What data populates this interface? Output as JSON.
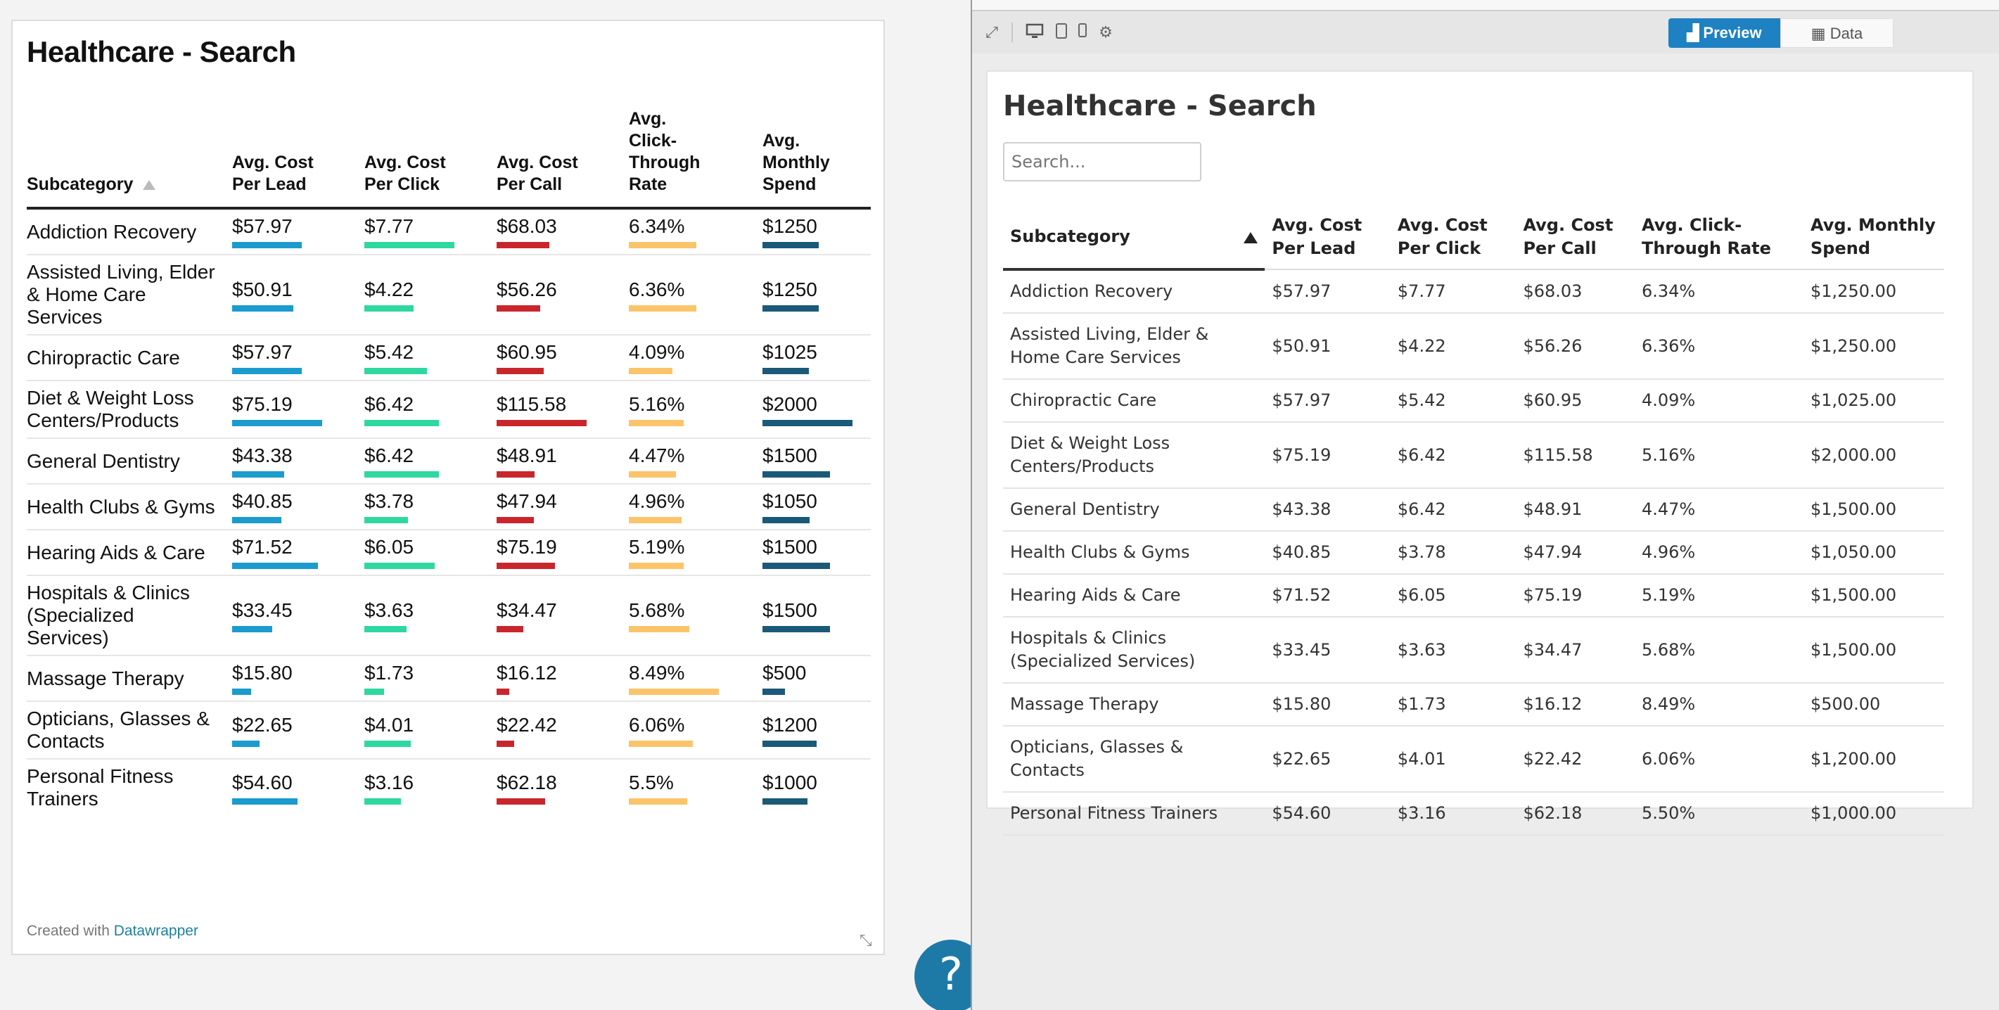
{
  "left": {
    "title": "Healthcare - Search",
    "headers": {
      "subcategory": "Subcategory",
      "cost_per_lead": "Avg. Cost Per Lead",
      "cost_per_click": "Avg. Cost Per Click",
      "cost_per_call": "Avg. Cost Per Call",
      "ctr": "Avg. Click-Through Rate",
      "monthly_spend": "Avg. Monthly Spend"
    },
    "bar_colors": [
      "#1b9bce",
      "#2ed8a0",
      "#c9262c",
      "#fcc46a",
      "#1b5978"
    ],
    "rows": [
      {
        "subcategory": "Addiction Recovery",
        "lead": "$57.97",
        "click": "$7.77",
        "call": "$68.03",
        "ctr": "6.34%",
        "spend": "$1250"
      },
      {
        "subcategory": "Assisted Living, Elder & Home Care Services",
        "lead": "$50.91",
        "click": "$4.22",
        "call": "$56.26",
        "ctr": "6.36%",
        "spend": "$1250"
      },
      {
        "subcategory": "Chiropractic Care",
        "lead": "$57.97",
        "click": "$5.42",
        "call": "$60.95",
        "ctr": "4.09%",
        "spend": "$1025"
      },
      {
        "subcategory": "Diet & Weight Loss Centers/Products",
        "lead": "$75.19",
        "click": "$6.42",
        "call": "$115.58",
        "ctr": "5.16%",
        "spend": "$2000"
      },
      {
        "subcategory": "General Dentistry",
        "lead": "$43.38",
        "click": "$6.42",
        "call": "$48.91",
        "ctr": "4.47%",
        "spend": "$1500"
      },
      {
        "subcategory": "Health Clubs & Gyms",
        "lead": "$40.85",
        "click": "$3.78",
        "call": "$47.94",
        "ctr": "4.96%",
        "spend": "$1050"
      },
      {
        "subcategory": "Hearing Aids & Care",
        "lead": "$71.52",
        "click": "$6.05",
        "call": "$75.19",
        "ctr": "5.19%",
        "spend": "$1500"
      },
      {
        "subcategory": "Hospitals & Clinics (Specialized Services)",
        "lead": "$33.45",
        "click": "$3.63",
        "call": "$34.47",
        "ctr": "5.68%",
        "spend": "$1500"
      },
      {
        "subcategory": "Massage Therapy",
        "lead": "$15.80",
        "click": "$1.73",
        "call": "$16.12",
        "ctr": "8.49%",
        "spend": "$500"
      },
      {
        "subcategory": "Opticians, Glasses & Contacts",
        "lead": "$22.65",
        "click": "$4.01",
        "call": "$22.42",
        "ctr": "6.06%",
        "spend": "$1200"
      },
      {
        "subcategory": "Personal Fitness Trainers",
        "lead": "$54.60",
        "click": "$3.16",
        "call": "$62.18",
        "ctr": "5.5%",
        "spend": "$1000"
      }
    ],
    "credit_prefix": "Created with",
    "credit_link": "Datawrapper"
  },
  "help_label": "?",
  "right": {
    "view_preview": "Preview",
    "view_data": "Data",
    "title": "Healthcare - Search",
    "search_placeholder": "Search...",
    "headers": {
      "subcategory": "Subcategory",
      "cost_per_lead": "Avg. Cost Per Lead",
      "cost_per_click": "Avg. Cost Per Click",
      "cost_per_call": "Avg. Cost Per Call",
      "ctr": "Avg. Click-Through Rate",
      "monthly_spend": "Avg. Monthly Spend"
    },
    "rows": [
      {
        "subcategory": "Addiction Recovery",
        "lead": "$57.97",
        "click": "$7.77",
        "call": "$68.03",
        "ctr": "6.34%",
        "spend": "$1,250.00"
      },
      {
        "subcategory": "Assisted Living, Elder & Home Care Services",
        "lead": "$50.91",
        "click": "$4.22",
        "call": "$56.26",
        "ctr": "6.36%",
        "spend": "$1,250.00"
      },
      {
        "subcategory": "Chiropractic Care",
        "lead": "$57.97",
        "click": "$5.42",
        "call": "$60.95",
        "ctr": "4.09%",
        "spend": "$1,025.00"
      },
      {
        "subcategory": "Diet & Weight Loss Centers/Products",
        "lead": "$75.19",
        "click": "$6.42",
        "call": "$115.58",
        "ctr": "5.16%",
        "spend": "$2,000.00"
      },
      {
        "subcategory": "General Dentistry",
        "lead": "$43.38",
        "click": "$6.42",
        "call": "$48.91",
        "ctr": "4.47%",
        "spend": "$1,500.00"
      },
      {
        "subcategory": "Health Clubs & Gyms",
        "lead": "$40.85",
        "click": "$3.78",
        "call": "$47.94",
        "ctr": "4.96%",
        "spend": "$1,050.00"
      },
      {
        "subcategory": "Hearing Aids & Care",
        "lead": "$71.52",
        "click": "$6.05",
        "call": "$75.19",
        "ctr": "5.19%",
        "spend": "$1,500.00"
      },
      {
        "subcategory": "Hospitals & Clinics (Specialized Services)",
        "lead": "$33.45",
        "click": "$3.63",
        "call": "$34.47",
        "ctr": "5.68%",
        "spend": "$1,500.00"
      },
      {
        "subcategory": "Massage Therapy",
        "lead": "$15.80",
        "click": "$1.73",
        "call": "$16.12",
        "ctr": "8.49%",
        "spend": "$500.00"
      },
      {
        "subcategory": "Opticians, Glasses & Contacts",
        "lead": "$22.65",
        "click": "$4.01",
        "call": "$22.42",
        "ctr": "6.06%",
        "spend": "$1,200.00"
      },
      {
        "subcategory": "Personal Fitness Trainers",
        "lead": "$54.60",
        "click": "$3.16",
        "call": "$62.18",
        "ctr": "5.50%",
        "spend": "$1,000.00"
      }
    ]
  }
}
